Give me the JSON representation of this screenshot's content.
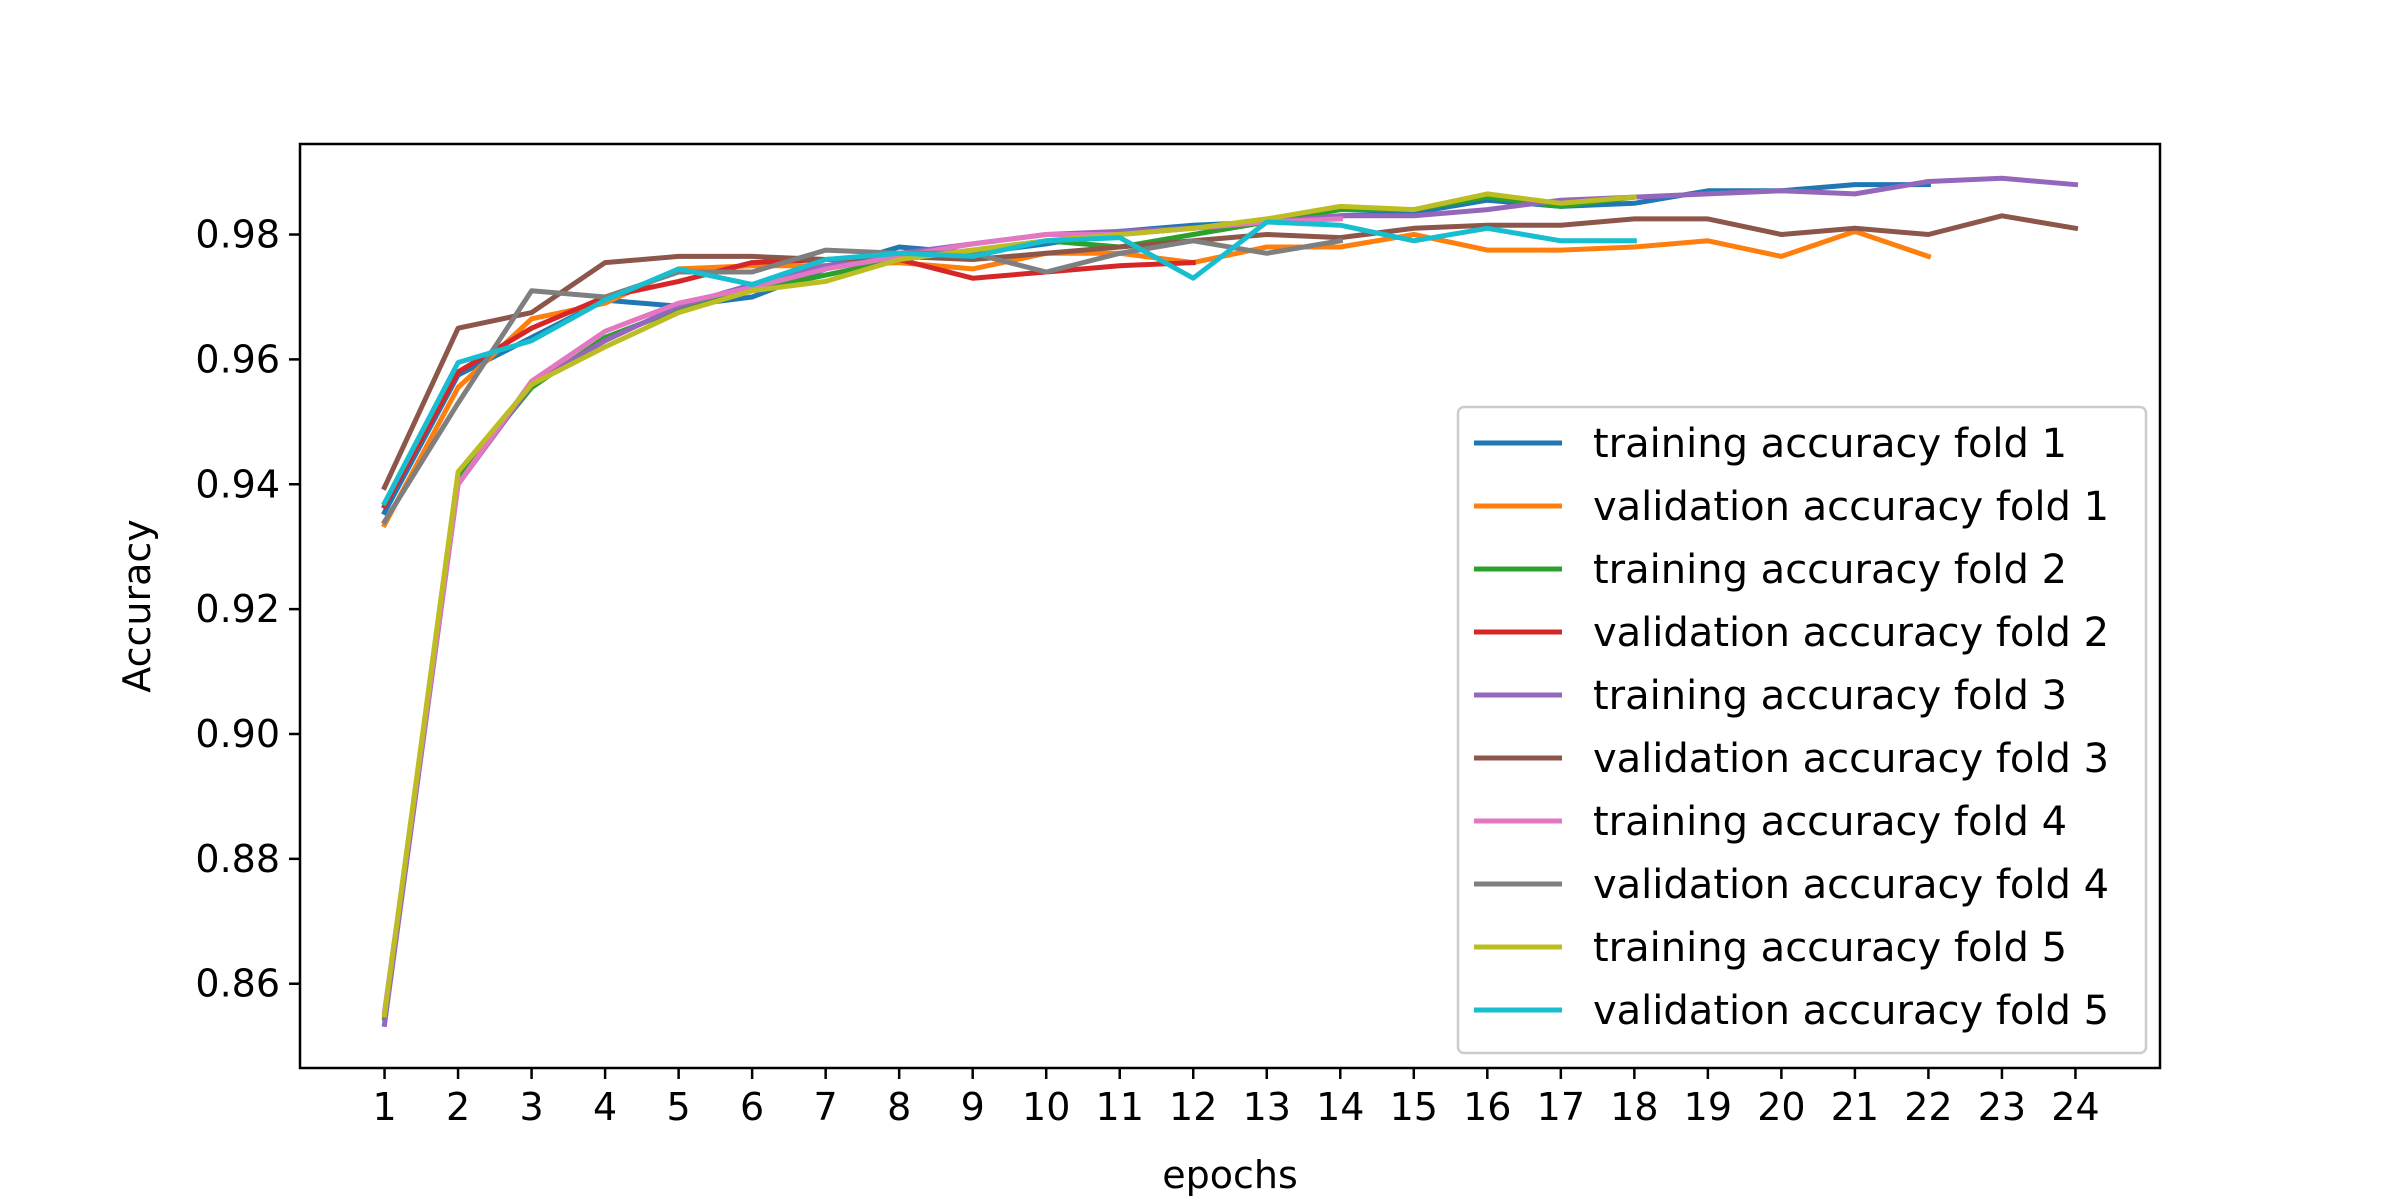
{
  "chart_data": {
    "type": "line",
    "title": "",
    "xlabel": "epochs",
    "ylabel": "Accuracy",
    "xlim": [
      -0.15,
      25.15
    ],
    "ylim": [
      0.8465,
      0.9945
    ],
    "x_ticks": [
      1,
      2,
      3,
      4,
      5,
      6,
      7,
      8,
      9,
      10,
      11,
      12,
      13,
      14,
      15,
      16,
      17,
      18,
      19,
      20,
      21,
      22,
      23,
      24
    ],
    "y_ticks": [
      0.86,
      0.88,
      0.9,
      0.92,
      0.94,
      0.96,
      0.98
    ],
    "y_tick_labels": [
      "0.86",
      "0.88",
      "0.90",
      "0.92",
      "0.94",
      "0.96",
      "0.98"
    ],
    "grid": false,
    "legend_position": "lower-right",
    "series": [
      {
        "name": "training accuracy fold 1",
        "color": "#1f77b4",
        "x": [
          1,
          2,
          3,
          4,
          5,
          6,
          7,
          8,
          9,
          10,
          11,
          12,
          13,
          14,
          15,
          16,
          17,
          18,
          19,
          20,
          21,
          22
        ],
        "y": [
          0.9355,
          0.9575,
          0.9635,
          0.9695,
          0.9685,
          0.97,
          0.9745,
          0.978,
          0.977,
          0.9785,
          0.9805,
          0.9815,
          0.982,
          0.983,
          0.9835,
          0.9855,
          0.9845,
          0.985,
          0.987,
          0.987,
          0.988,
          0.988
        ]
      },
      {
        "name": "validation accuracy fold 1",
        "color": "#ff7f0e",
        "x": [
          1,
          2,
          3,
          4,
          5,
          6,
          7,
          8,
          9,
          10,
          11,
          12,
          13,
          14,
          15,
          16,
          17,
          18,
          19,
          20,
          21,
          22
        ],
        "y": [
          0.9335,
          0.9555,
          0.9665,
          0.969,
          0.9745,
          0.975,
          0.975,
          0.9755,
          0.9745,
          0.977,
          0.977,
          0.9755,
          0.978,
          0.978,
          0.98,
          0.9775,
          0.9775,
          0.978,
          0.979,
          0.9765,
          0.9805,
          0.9765
        ]
      },
      {
        "name": "training accuracy fold 2",
        "color": "#2ca02c",
        "x": [
          1,
          2,
          3,
          4,
          5,
          6,
          7,
          8,
          9,
          10,
          11,
          12,
          13,
          14,
          15,
          16,
          17,
          18
        ],
        "y": [
          0.8545,
          0.941,
          0.9555,
          0.9635,
          0.968,
          0.971,
          0.9735,
          0.976,
          0.9775,
          0.979,
          0.978,
          0.98,
          0.982,
          0.984,
          0.984,
          0.986,
          0.9845,
          0.986
        ]
      },
      {
        "name": "validation accuracy fold 2",
        "color": "#d62728",
        "x": [
          1,
          2,
          3,
          4,
          5,
          6,
          7,
          8,
          9,
          10,
          11,
          12
        ],
        "y": [
          0.9365,
          0.958,
          0.965,
          0.97,
          0.9725,
          0.9755,
          0.976,
          0.976,
          0.973,
          0.974,
          0.975,
          0.9755
        ]
      },
      {
        "name": "training accuracy fold 3",
        "color": "#9467bd",
        "x": [
          1,
          2,
          3,
          4,
          5,
          6,
          7,
          8,
          9,
          10,
          11,
          12,
          13,
          14,
          15,
          16,
          17,
          18,
          19,
          20,
          21,
          22,
          23,
          24
        ],
        "y": [
          0.8535,
          0.94,
          0.956,
          0.963,
          0.9685,
          0.972,
          0.975,
          0.977,
          0.9785,
          0.98,
          0.9805,
          0.981,
          0.982,
          0.983,
          0.983,
          0.984,
          0.9855,
          0.986,
          0.9865,
          0.987,
          0.9865,
          0.9885,
          0.989,
          0.988
        ]
      },
      {
        "name": "validation accuracy fold 3",
        "color": "#8c564b",
        "x": [
          1,
          2,
          3,
          4,
          5,
          6,
          7,
          8,
          9,
          10,
          11,
          12,
          13,
          14,
          15,
          16,
          17,
          18,
          19,
          20,
          21,
          22,
          23,
          24
        ],
        "y": [
          0.9395,
          0.965,
          0.9675,
          0.9755,
          0.9765,
          0.9765,
          0.976,
          0.9765,
          0.976,
          0.977,
          0.978,
          0.979,
          0.98,
          0.9795,
          0.981,
          0.9815,
          0.9815,
          0.9825,
          0.9825,
          0.98,
          0.981,
          0.98,
          0.983,
          0.981
        ]
      },
      {
        "name": "training accuracy fold 4",
        "color": "#e377c2",
        "x": [
          1,
          2,
          3,
          4,
          5,
          6,
          7,
          8,
          9,
          10,
          11,
          12,
          13,
          14
        ],
        "y": [
          0.8555,
          0.94,
          0.9565,
          0.9645,
          0.969,
          0.9715,
          0.9745,
          0.9765,
          0.9785,
          0.98,
          0.98,
          0.981,
          0.982,
          0.9825
        ]
      },
      {
        "name": "validation accuracy fold 4",
        "color": "#7f7f7f",
        "x": [
          1,
          2,
          3,
          4,
          5,
          6,
          7,
          8,
          9,
          10,
          11,
          12,
          13,
          14
        ],
        "y": [
          0.934,
          0.953,
          0.971,
          0.97,
          0.974,
          0.974,
          0.9775,
          0.977,
          0.977,
          0.974,
          0.977,
          0.979,
          0.977,
          0.979
        ]
      },
      {
        "name": "training accuracy fold 5",
        "color": "#bcbd22",
        "x": [
          1,
          2,
          3,
          4,
          5,
          6,
          7,
          8,
          9,
          10,
          11,
          12,
          13,
          14,
          15,
          16,
          17,
          18
        ],
        "y": [
          0.855,
          0.942,
          0.956,
          0.962,
          0.9675,
          0.971,
          0.9725,
          0.976,
          0.9775,
          0.979,
          0.98,
          0.981,
          0.9825,
          0.9845,
          0.984,
          0.9865,
          0.985,
          0.986
        ]
      },
      {
        "name": "validation accuracy fold 5",
        "color": "#17becf",
        "x": [
          1,
          2,
          3,
          4,
          5,
          6,
          7,
          8,
          9,
          10,
          11,
          12,
          13,
          14,
          15,
          16,
          17,
          18
        ],
        "y": [
          0.937,
          0.9595,
          0.963,
          0.9695,
          0.9745,
          0.972,
          0.976,
          0.977,
          0.9765,
          0.979,
          0.9795,
          0.973,
          0.982,
          0.9815,
          0.979,
          0.981,
          0.979,
          0.979
        ]
      }
    ]
  }
}
